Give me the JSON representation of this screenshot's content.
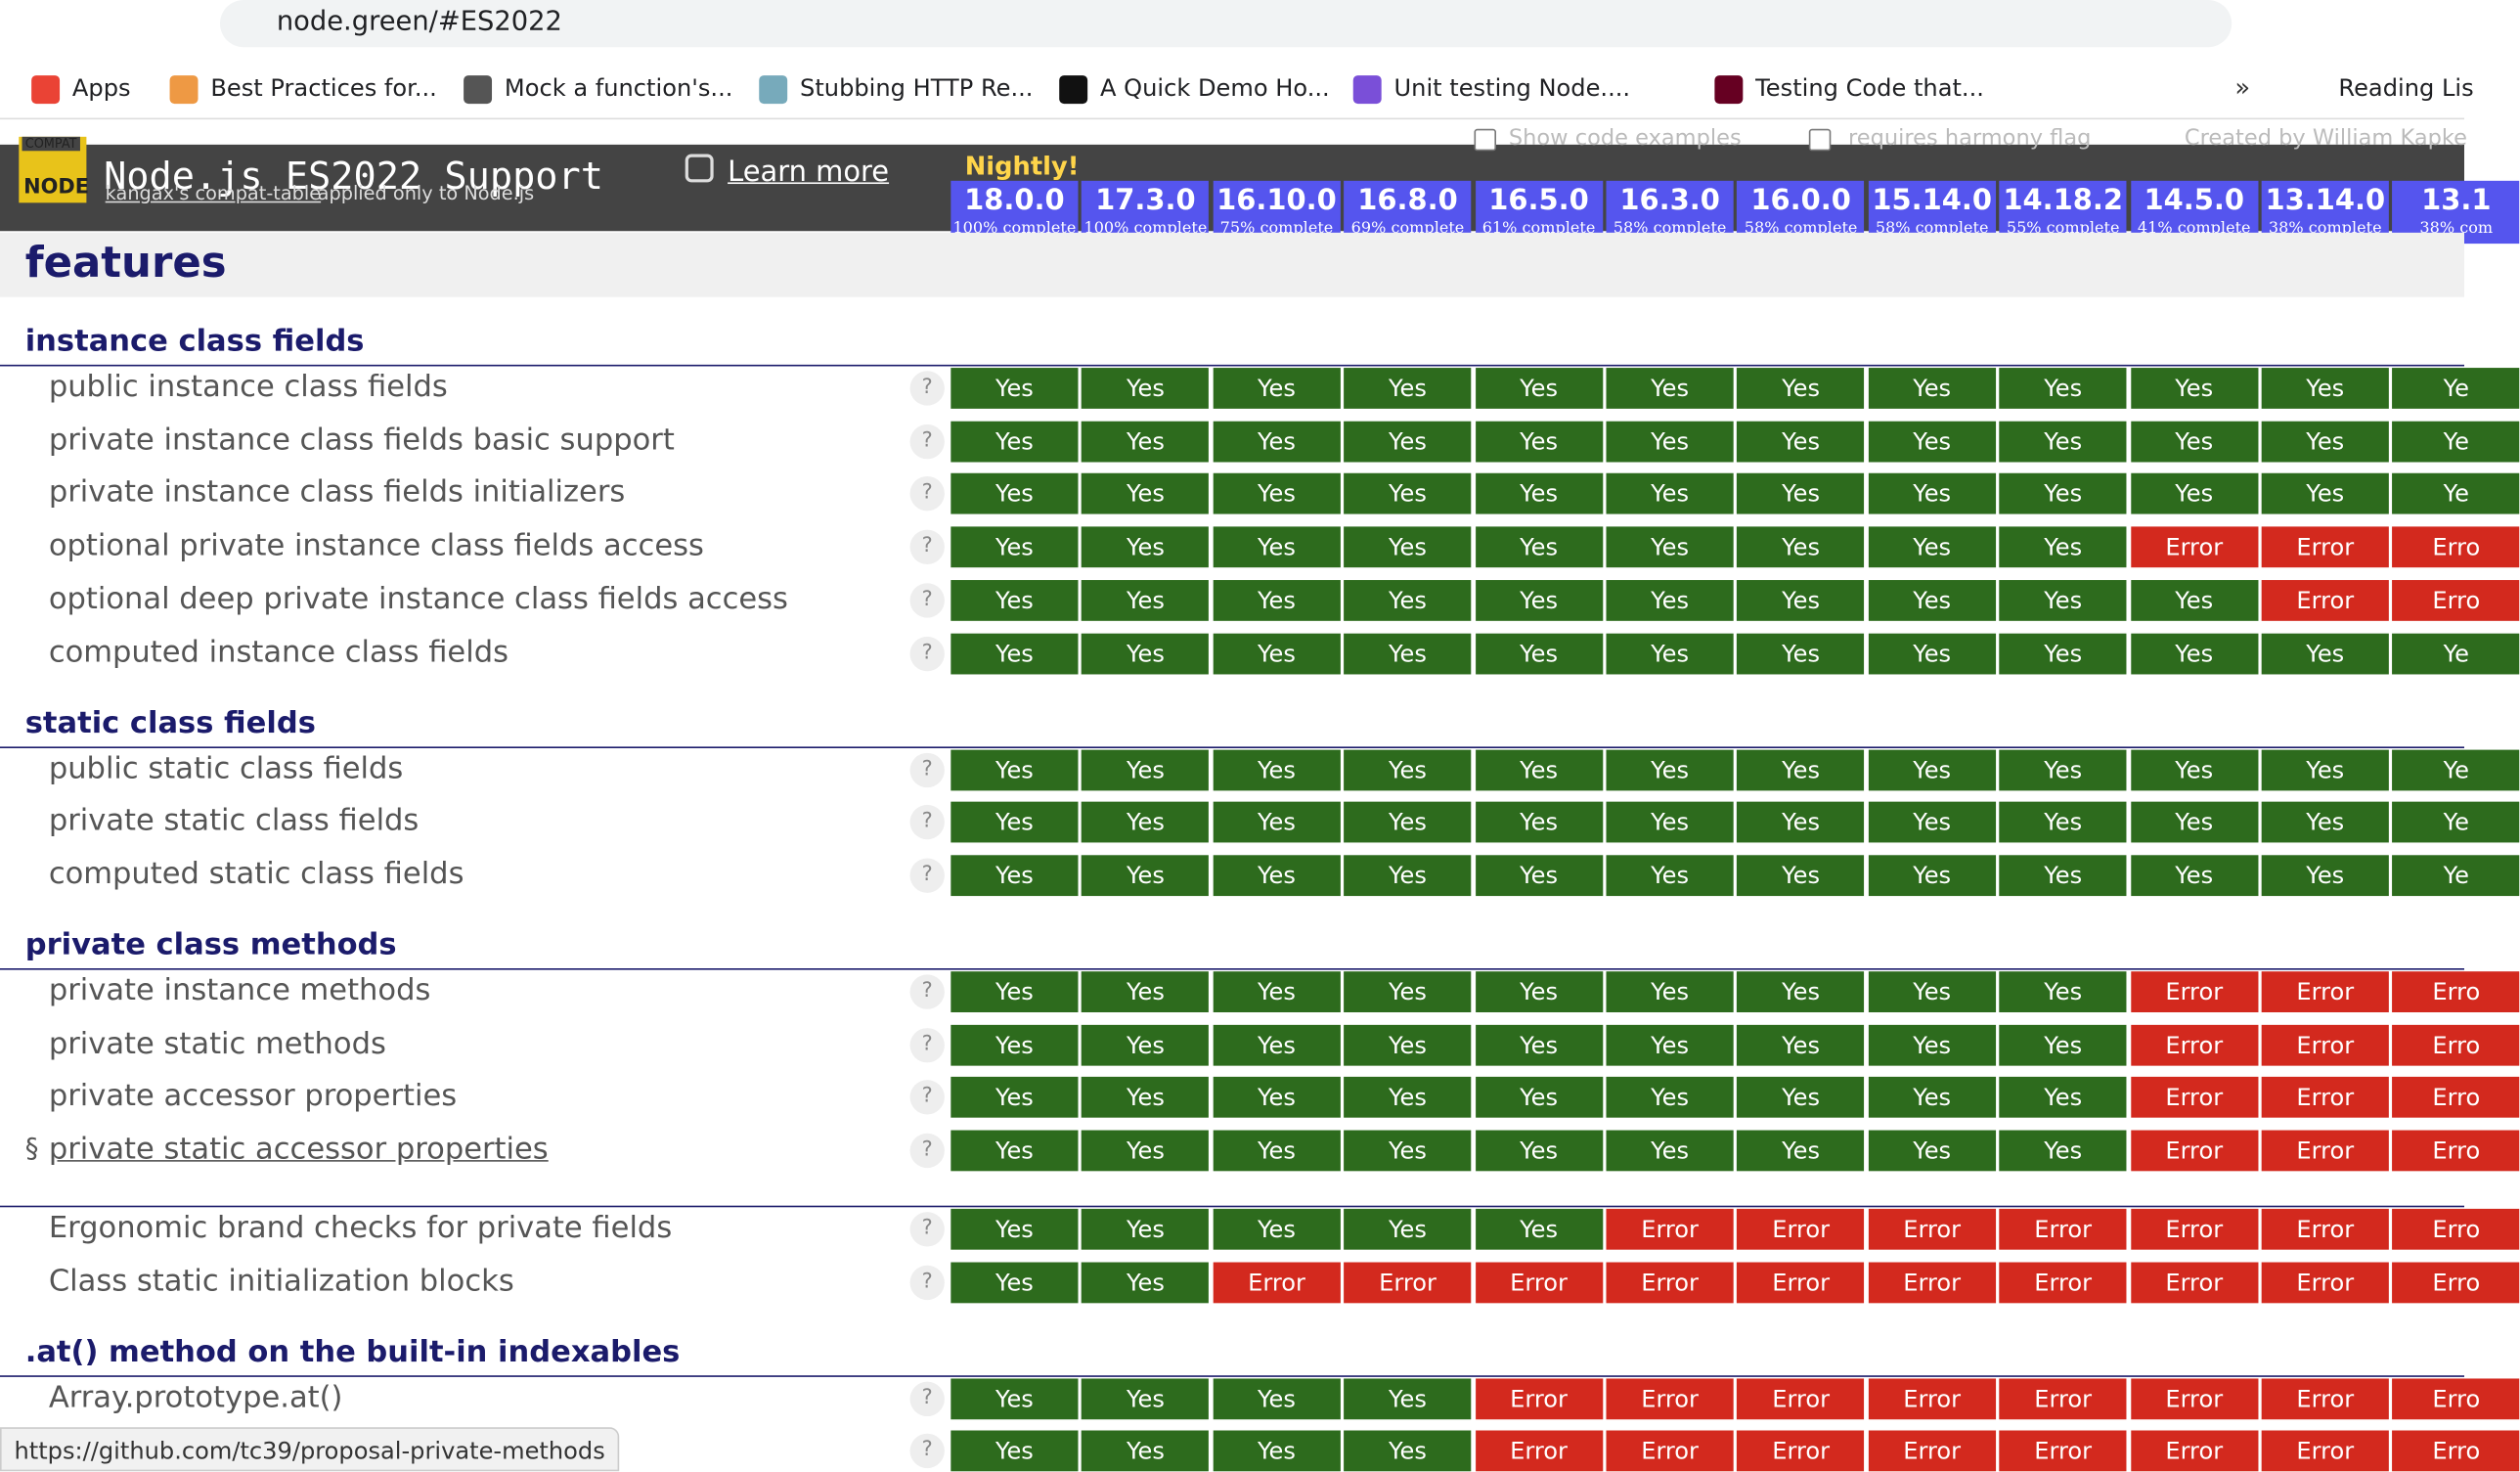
{
  "browser": {
    "url": "node.green/#ES2022",
    "bookmarks": [
      "Apps",
      "Best Practices for...",
      "Mock a function's...",
      "Stubbing HTTP Re...",
      "A Quick Demo Ho...",
      "Unit testing Node....",
      "Testing Code that..."
    ],
    "more": "»",
    "reading_list": "Reading Lis"
  },
  "header": {
    "logo_top": "COMPAT",
    "logo_bottom": "NODE",
    "title": "Node.js ES2022 Support",
    "subtitle_link": "kangax's compat-table",
    "subtitle_rest": "applied only to Node.js",
    "learn_more": "Learn more",
    "option_code": "Show code examples",
    "option_harmony": "requires harmony flag",
    "credit": "Created by William Kapke",
    "nightly": "Nightly!"
  },
  "versions": [
    {
      "name": "18.0.0",
      "complete": "100% complete"
    },
    {
      "name": "17.3.0",
      "complete": "100% complete"
    },
    {
      "name": "16.10.0",
      "complete": "75% complete"
    },
    {
      "name": "16.8.0",
      "complete": "69% complete"
    },
    {
      "name": "16.5.0",
      "complete": "61% complete"
    },
    {
      "name": "16.3.0",
      "complete": "58% complete"
    },
    {
      "name": "16.0.0",
      "complete": "58% complete"
    },
    {
      "name": "15.14.0",
      "complete": "58% complete"
    },
    {
      "name": "14.18.2",
      "complete": "55% complete"
    },
    {
      "name": "14.5.0",
      "complete": "41% complete"
    },
    {
      "name": "13.14.0",
      "complete": "38% complete"
    },
    {
      "name": "13.1",
      "complete": "38% com"
    }
  ],
  "features_title": "features",
  "groups": [
    {
      "title": "instance class fields",
      "rows": [
        {
          "label": "public instance class fields",
          "results": [
            "Yes",
            "Yes",
            "Yes",
            "Yes",
            "Yes",
            "Yes",
            "Yes",
            "Yes",
            "Yes",
            "Yes",
            "Yes",
            "Ye"
          ]
        },
        {
          "label": "private instance class fields basic support",
          "results": [
            "Yes",
            "Yes",
            "Yes",
            "Yes",
            "Yes",
            "Yes",
            "Yes",
            "Yes",
            "Yes",
            "Yes",
            "Yes",
            "Ye"
          ]
        },
        {
          "label": "private instance class fields initializers",
          "results": [
            "Yes",
            "Yes",
            "Yes",
            "Yes",
            "Yes",
            "Yes",
            "Yes",
            "Yes",
            "Yes",
            "Yes",
            "Yes",
            "Ye"
          ]
        },
        {
          "label": "optional private instance class fields access",
          "results": [
            "Yes",
            "Yes",
            "Yes",
            "Yes",
            "Yes",
            "Yes",
            "Yes",
            "Yes",
            "Yes",
            "Error",
            "Error",
            "Erro"
          ]
        },
        {
          "label": "optional deep private instance class fields access",
          "results": [
            "Yes",
            "Yes",
            "Yes",
            "Yes",
            "Yes",
            "Yes",
            "Yes",
            "Yes",
            "Yes",
            "Yes",
            "Error",
            "Erro"
          ]
        },
        {
          "label": "computed instance class fields",
          "results": [
            "Yes",
            "Yes",
            "Yes",
            "Yes",
            "Yes",
            "Yes",
            "Yes",
            "Yes",
            "Yes",
            "Yes",
            "Yes",
            "Ye"
          ]
        }
      ]
    },
    {
      "title": "static class fields",
      "rows": [
        {
          "label": "public static class fields",
          "results": [
            "Yes",
            "Yes",
            "Yes",
            "Yes",
            "Yes",
            "Yes",
            "Yes",
            "Yes",
            "Yes",
            "Yes",
            "Yes",
            "Ye"
          ]
        },
        {
          "label": "private static class fields",
          "results": [
            "Yes",
            "Yes",
            "Yes",
            "Yes",
            "Yes",
            "Yes",
            "Yes",
            "Yes",
            "Yes",
            "Yes",
            "Yes",
            "Ye"
          ]
        },
        {
          "label": "computed static class fields",
          "results": [
            "Yes",
            "Yes",
            "Yes",
            "Yes",
            "Yes",
            "Yes",
            "Yes",
            "Yes",
            "Yes",
            "Yes",
            "Yes",
            "Ye"
          ]
        }
      ]
    },
    {
      "title": "private class methods",
      "rows": [
        {
          "label": "private instance methods",
          "results": [
            "Yes",
            "Yes",
            "Yes",
            "Yes",
            "Yes",
            "Yes",
            "Yes",
            "Yes",
            "Yes",
            "Error",
            "Error",
            "Erro"
          ]
        },
        {
          "label": "private static methods",
          "results": [
            "Yes",
            "Yes",
            "Yes",
            "Yes",
            "Yes",
            "Yes",
            "Yes",
            "Yes",
            "Yes",
            "Error",
            "Error",
            "Erro"
          ]
        },
        {
          "label": "private accessor properties",
          "results": [
            "Yes",
            "Yes",
            "Yes",
            "Yes",
            "Yes",
            "Yes",
            "Yes",
            "Yes",
            "Yes",
            "Error",
            "Error",
            "Erro"
          ]
        },
        {
          "anchor": "§",
          "label": "private static accessor properties",
          "results": [
            "Yes",
            "Yes",
            "Yes",
            "Yes",
            "Yes",
            "Yes",
            "Yes",
            "Yes",
            "Yes",
            "Error",
            "Error",
            "Erro"
          ]
        }
      ]
    },
    {
      "rows": [
        {
          "label": "Ergonomic brand checks for private fields",
          "results": [
            "Yes",
            "Yes",
            "Yes",
            "Yes",
            "Yes",
            "Error",
            "Error",
            "Error",
            "Error",
            "Error",
            "Error",
            "Erro"
          ]
        },
        {
          "label": "Class static initialization blocks",
          "results": [
            "Yes",
            "Yes",
            "Error",
            "Error",
            "Error",
            "Error",
            "Error",
            "Error",
            "Error",
            "Error",
            "Error",
            "Erro"
          ]
        }
      ]
    },
    {
      "title": ".at() method on the built-in indexables",
      "rows": [
        {
          "label": "Array.prototype.at()",
          "results": [
            "Yes",
            "Yes",
            "Yes",
            "Yes",
            "Error",
            "Error",
            "Error",
            "Error",
            "Error",
            "Error",
            "Error",
            "Erro"
          ]
        },
        {
          "results": [
            "Yes",
            "Yes",
            "Yes",
            "Yes",
            "Error",
            "Error",
            "Error",
            "Error",
            "Error",
            "Error",
            "Error",
            "Erro"
          ]
        }
      ]
    }
  ],
  "help": "?",
  "status_url": "https://github.com/tc39/proposal-private-methods"
}
